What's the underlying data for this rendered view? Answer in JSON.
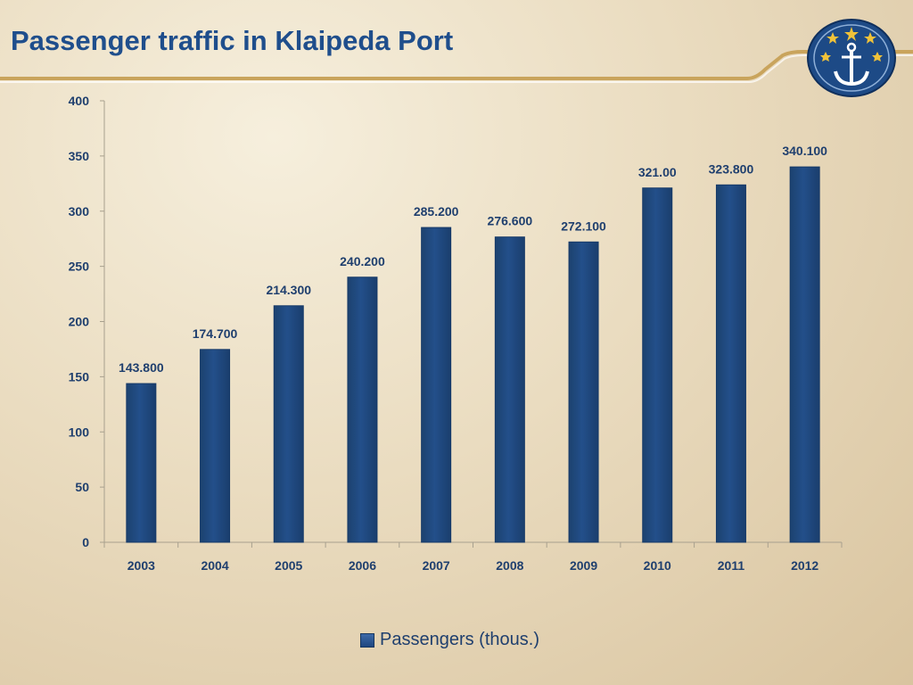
{
  "slide": {
    "title": "Passenger traffic in Klaipeda Port"
  },
  "logo": {
    "icon": "anchor-stars-logo-icon"
  },
  "colors": {
    "bar": "#234f8a",
    "bar_edge": "#173a68",
    "axis": "#a8a08e",
    "title": "#1f4e8c",
    "label": "#1f3f6e"
  },
  "chart_data": {
    "type": "bar",
    "categories": [
      "2003",
      "2004",
      "2005",
      "2006",
      "2007",
      "2008",
      "2009",
      "2010",
      "2011",
      "2012"
    ],
    "series": [
      {
        "name": "Passengers (thous.)",
        "values": [
          143.8,
          174.7,
          214.3,
          240.2,
          285.2,
          276.6,
          272.1,
          321.0,
          323.8,
          340.1
        ],
        "data_labels": [
          "143.800",
          "174.700",
          "214.300",
          "240.200",
          "285.200",
          "276.600",
          "272.100",
          "321.00",
          "323.800",
          "340.100"
        ]
      }
    ],
    "yticks": [
      "0",
      "50",
      "100",
      "150",
      "200",
      "250",
      "300",
      "350",
      "400"
    ],
    "ylim": [
      0,
      400
    ],
    "grid": false,
    "legend_position": "bottom"
  }
}
